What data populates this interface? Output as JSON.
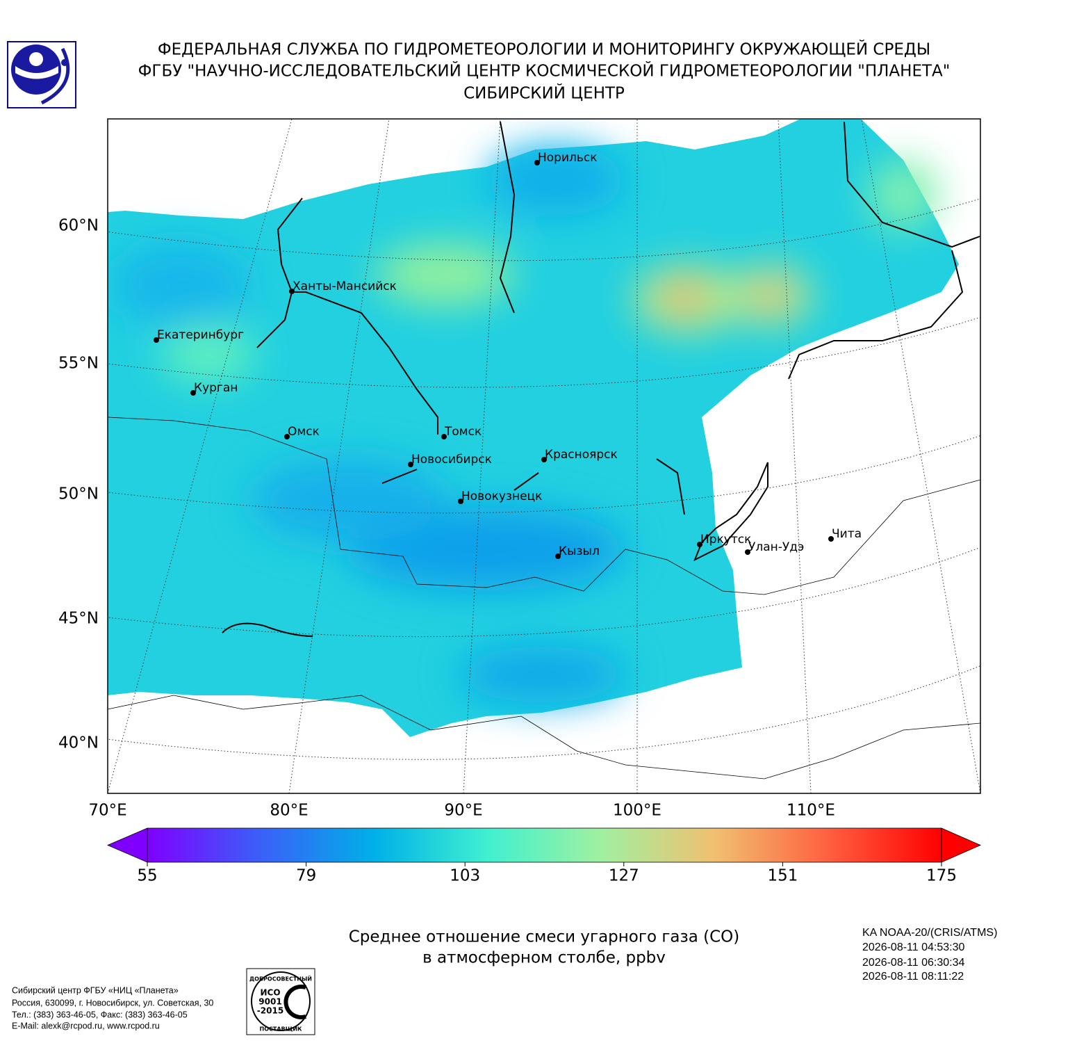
{
  "header": {
    "lines": [
      "ФЕДЕРАЛЬНАЯ СЛУЖБА ПО ГИДРОМЕТЕОРОЛОГИИ И МОНИТОРИНГУ ОКРУЖАЮЩЕЙ СРЕДЫ",
      "ФГБУ \"НАУЧНО-ИССЛЕДОВАТЕЛЬСКИЙ ЦЕНТР КОСМИЧЕСКОЙ ГИДРОМЕТЕОРОЛОГИИ \"ПЛАНЕТА\"",
      "СИБИРСКИЙ ЦЕНТР"
    ]
  },
  "map": {
    "lat_labels": [
      "60°N",
      "55°N",
      "50°N",
      "45°N",
      "40°N"
    ],
    "lon_labels": [
      "70°E",
      "80°E",
      "90°E",
      "100°E",
      "110°E"
    ],
    "cities": [
      "Норильск",
      "Ханты-Мансийск",
      "Екатеринбург",
      "Курган",
      "Омск",
      "Томск",
      "Новосибирск",
      "Красноярск",
      "Новокузнецк",
      "Кызыл",
      "Иркутск",
      "Улан-Удэ",
      "Чита"
    ]
  },
  "colorbar": {
    "lim": [
      55,
      175
    ],
    "ticks": [
      55,
      79,
      103,
      127,
      151,
      175
    ],
    "colors": [
      "#7f00ff",
      "#3a60f8",
      "#00b0e8",
      "#40f0d0",
      "#a0f0a0",
      "#f0c070",
      "#ff6040",
      "#ff0000"
    ]
  },
  "title": {
    "lines": [
      "Среднее отношение смеси угарного газа (CO)",
      "в атмосферном столбе, ppbv"
    ]
  },
  "satellite": {
    "lines": [
      "KA NOAA-20/(CRIS/ATMS)",
      "2026-08-11 04:53:30",
      "2026-08-11 06:30:34",
      "2026-08-11 08:11:22"
    ]
  },
  "footer": {
    "lines": [
      "Сибирский центр ФГБУ «НИЦ «Планета»",
      "Россия, 630099, г. Новосибирск, ул. Советская, 30",
      "Тел.: (383) 363-46-05, Факс: (383) 363-46-05",
      "E-Mail: alexk@rcpod.ru, www.rcpod.ru"
    ]
  },
  "logo": {
    "top": "ДОБРОСОВЕСТНЫЙ",
    "bottom": "ПОСТАВЩИК",
    "lines": [
      "ИСО",
      "9001",
      "-2015"
    ]
  }
}
